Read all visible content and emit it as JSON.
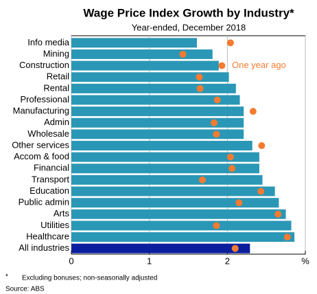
{
  "chart_data": {
    "type": "bar_dot",
    "title": "Wage Price Index Growth by Industry*",
    "subtitle": "Year-ended, December 2018",
    "annotation": "One year ago",
    "footnote_mark": "*",
    "footnote": "Excluding bonuses; non-seasonally adjusted",
    "source": "Source:   ABS",
    "categories": [
      "Info media",
      "Mining",
      "Construction",
      "Retail",
      "Rental",
      "Professional",
      "Manufacturing",
      "Admin",
      "Wholesale",
      "Other services",
      "Accom & food",
      "Financial",
      "Transport",
      "Education",
      "Public admin",
      "Arts",
      "Utilities",
      "Healthcare",
      "All industries"
    ],
    "series": [
      {
        "colors": [
          "#2b97b6",
          "#2b97b6",
          "#2b97b6",
          "#2b97b6",
          "#2b97b6",
          "#2b97b6",
          "#2b97b6",
          "#2b97b6",
          "#2b97b6",
          "#2b97b6",
          "#2b97b6",
          "#2b97b6",
          "#2b97b6",
          "#2b97b6",
          "#2b97b6",
          "#2b97b6",
          "#2b97b6",
          "#2b97b6",
          "#0b1f9e"
        ],
        "values": [
          1.61,
          1.81,
          1.89,
          2.02,
          2.11,
          2.16,
          2.21,
          2.21,
          2.21,
          2.32,
          2.41,
          2.41,
          2.45,
          2.61,
          2.66,
          2.75,
          2.82,
          2.86,
          2.29
        ]
      },
      {
        "color": "#f47b30",
        "values": [
          2.04,
          1.43,
          1.93,
          1.64,
          1.65,
          1.87,
          2.33,
          1.83,
          1.86,
          2.44,
          2.04,
          2.06,
          1.68,
          2.43,
          2.15,
          2.65,
          1.86,
          2.77,
          2.1
        ]
      }
    ],
    "xlim": [
      0,
      3
    ],
    "xticks": [
      0,
      1,
      2,
      {
        "value": 3,
        "label": "%"
      }
    ],
    "grid": true
  }
}
